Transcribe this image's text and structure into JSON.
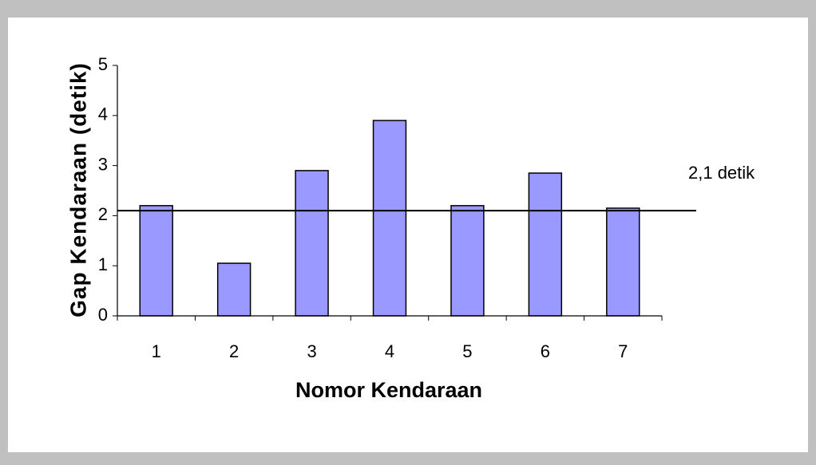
{
  "chart_data": {
    "type": "bar",
    "categories": [
      "1",
      "2",
      "3",
      "4",
      "5",
      "6",
      "7"
    ],
    "values": [
      2.2,
      1.05,
      2.9,
      3.9,
      2.2,
      2.85,
      2.15
    ],
    "color": "#9999ff",
    "xlabel": "Nomor Kendaraan",
    "ylabel": "Gap Kendaraan (detik)",
    "ylim": [
      0,
      5
    ],
    "yticks": [
      0,
      1,
      2,
      3,
      4,
      5
    ],
    "grid": false,
    "reference_line": {
      "value": 2.1,
      "label": "2,1 detik"
    }
  }
}
